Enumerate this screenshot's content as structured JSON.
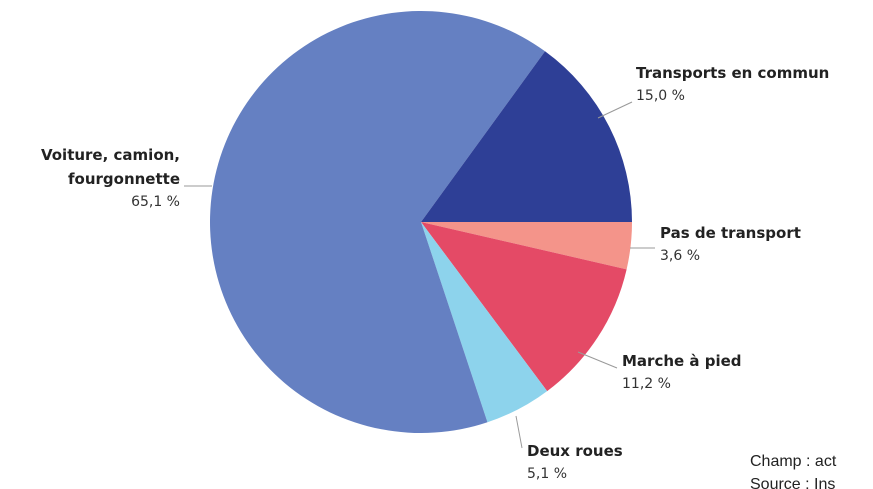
{
  "chart_data": {
    "type": "pie",
    "categories": [
      "Pas de transport",
      "Marche à pied",
      "Deux roues",
      "Voiture, camion,\nfourgonnette",
      "Transports en commun"
    ],
    "values": [
      3.6,
      11.2,
      5.1,
      65.1,
      15.0
    ],
    "value_labels": [
      "3,6 %",
      "11,2 %",
      "5,1 %",
      "65,1 %",
      "15,0 %"
    ],
    "colors": [
      "#f4948a",
      "#e44a66",
      "#8dd3ec",
      "#6580c2",
      "#2e3f96"
    ],
    "notes": [
      "Champ : act",
      "Source : Ins"
    ]
  }
}
